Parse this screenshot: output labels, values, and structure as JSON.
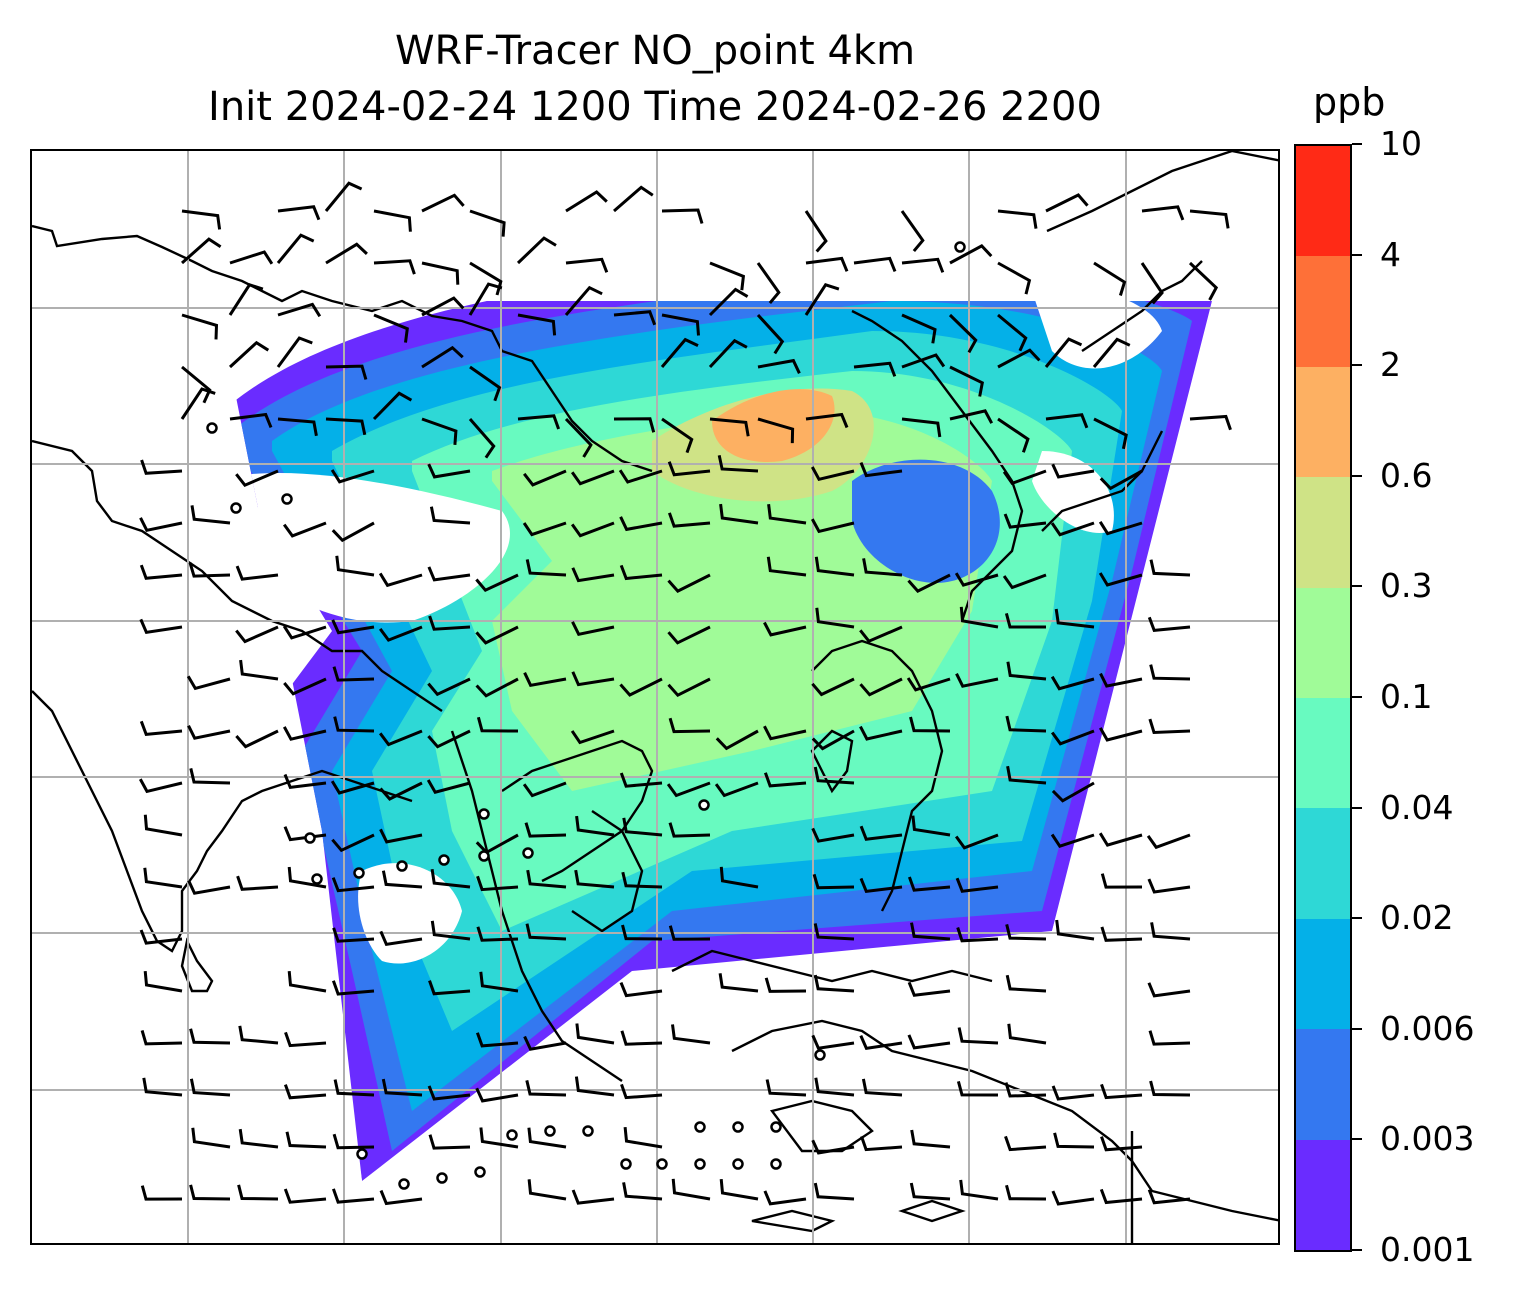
{
  "title": {
    "line1": "WRF-Tracer NO_point 4km",
    "line2": "Init 2024-02-24 1200 Time 2024-02-26 2200"
  },
  "colorbar": {
    "unit": "ppb",
    "levels": [
      "0.001",
      "0.003",
      "0.006",
      "0.02",
      "0.04",
      "0.1",
      "0.3",
      "0.6",
      "2",
      "4",
      "10"
    ],
    "colors": [
      "#6a2cff",
      "#3478f0",
      "#04b0e8",
      "#2ed8d6",
      "#68fac0",
      "#a0fb98",
      "#cfe386",
      "#fdb062",
      "#fe7038",
      "#ff2a16"
    ]
  },
  "map": {
    "field": "NO_point tracer concentration",
    "overlays": [
      "wind-barbs",
      "coastlines",
      "gridlines",
      "source-points"
    ]
  }
}
